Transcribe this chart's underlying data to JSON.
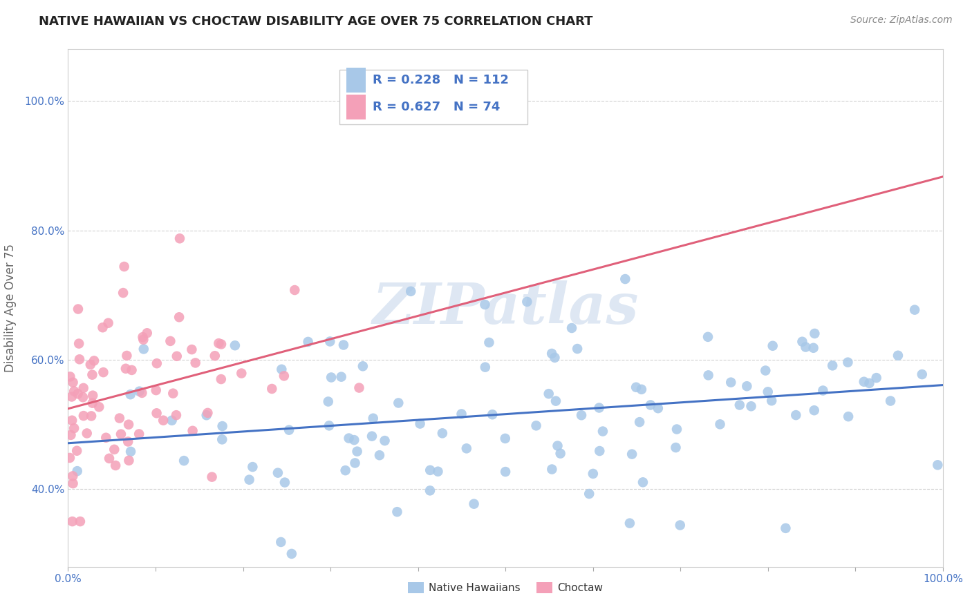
{
  "title": "NATIVE HAWAIIAN VS CHOCTAW DISABILITY AGE OVER 75 CORRELATION CHART",
  "source": "Source: ZipAtlas.com",
  "ylabel": "Disability Age Over 75",
  "xlim": [
    0.0,
    1.0
  ],
  "ylim": [
    0.28,
    1.08
  ],
  "yticks": [
    0.4,
    0.6,
    0.8,
    1.0
  ],
  "ytick_labels": [
    "40.0%",
    "60.0%",
    "80.0%",
    "100.0%"
  ],
  "xtick_labels": [
    "0.0%",
    "",
    "",
    "",
    "",
    "",
    "",
    "",
    "",
    "",
    "100.0%"
  ],
  "blue_color": "#a8c8e8",
  "pink_color": "#f4a0b8",
  "blue_line_color": "#4472c4",
  "pink_line_color": "#e0607a",
  "watermark_text": "ZIPatlas",
  "blue_R": 0.228,
  "blue_N": 112,
  "pink_R": 0.627,
  "pink_N": 74,
  "background_color": "#ffffff",
  "grid_color": "#d0d0d0",
  "title_color": "#222222",
  "title_fontsize": 13,
  "axis_label_color": "#666666",
  "tick_color": "#4472c4",
  "legend_color": "#4472c4"
}
